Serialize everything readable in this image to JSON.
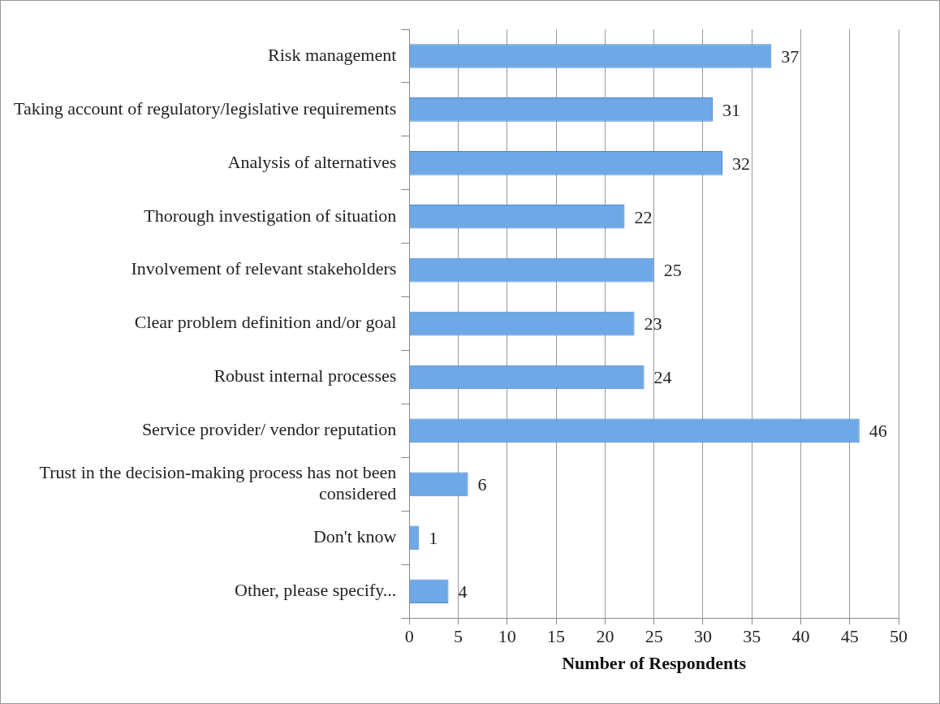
{
  "chart_data": {
    "type": "bar",
    "orientation": "horizontal",
    "xlabel": "Number of Respondents",
    "categories": [
      "Risk management",
      "Taking account of regulatory/legislative requirements",
      "Analysis of alternatives",
      "Thorough investigation of situation",
      "Involvement of relevant stakeholders",
      "Clear problem definition and/or goal",
      "Robust internal processes",
      "Service provider/ vendor reputation",
      "Trust in the decision-making process has not been considered",
      "Don't know",
      "Other, please specify..."
    ],
    "values": [
      37,
      31,
      32,
      22,
      25,
      23,
      24,
      46,
      6,
      1,
      4
    ],
    "color": "#6fa8e6",
    "xlim": [
      0,
      50
    ],
    "xticks": [
      0,
      5,
      10,
      15,
      20,
      25,
      30,
      35,
      40,
      45,
      50
    ],
    "grid": "x",
    "data_labels": true,
    "legend": false
  }
}
